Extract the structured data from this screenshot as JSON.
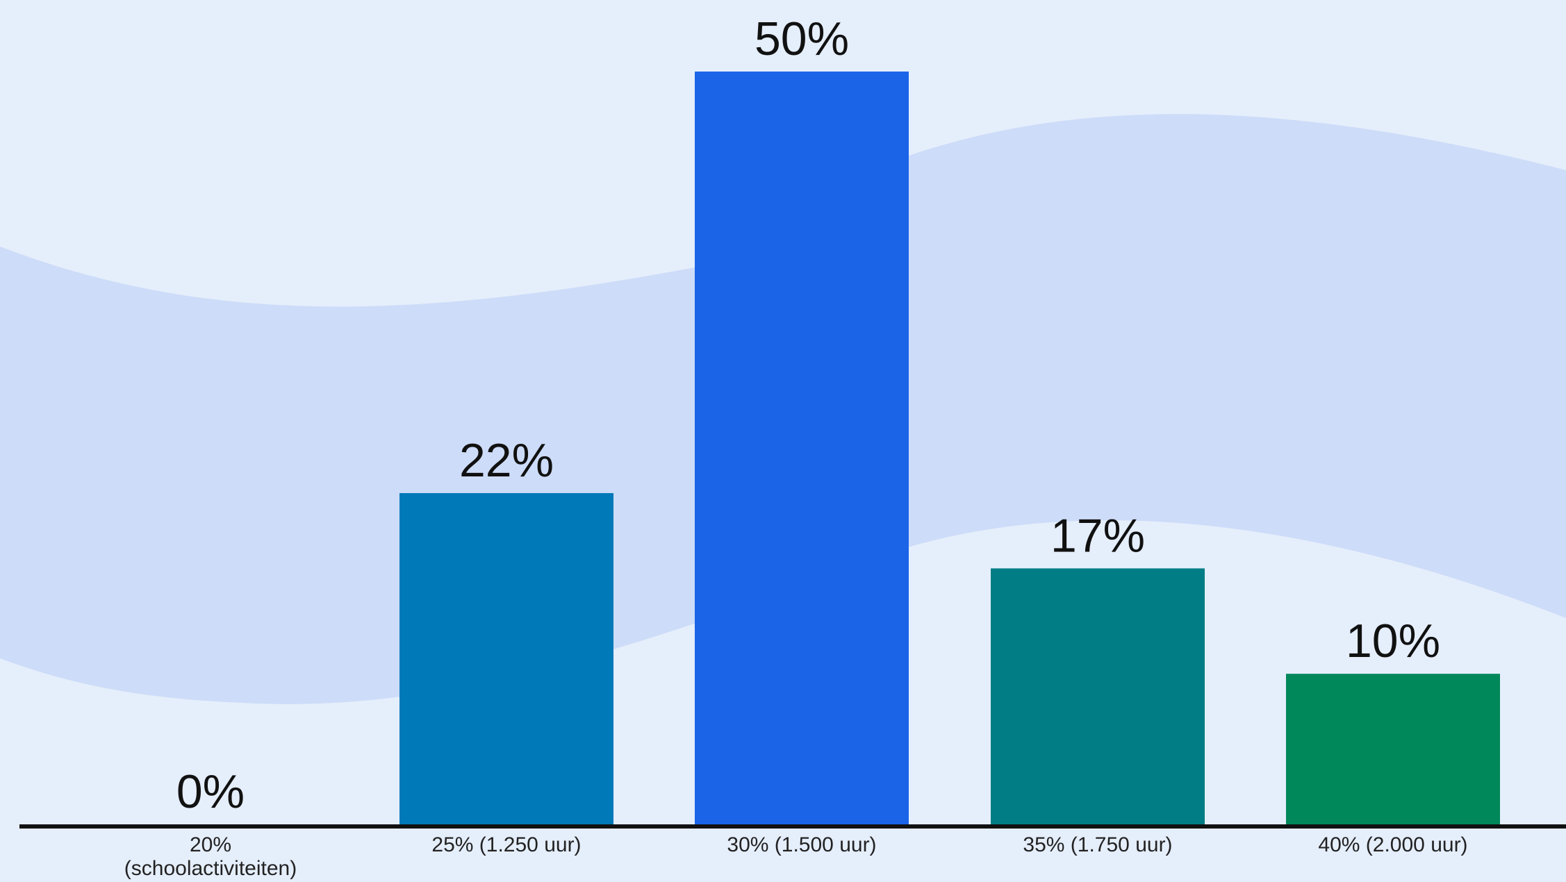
{
  "chart_data": {
    "type": "bar",
    "categories": [
      [
        "20%",
        "(schoolactiviteiten)"
      ],
      [
        "25% (1.250 uur)"
      ],
      [
        "30% (1.500 uur)"
      ],
      [
        "35% (1.750 uur)"
      ],
      [
        "40% (2.000 uur)"
      ]
    ],
    "values": [
      0,
      22,
      50,
      17,
      10
    ],
    "value_labels": [
      "0%",
      "22%",
      "50%",
      "17%",
      "10%"
    ],
    "bar_colors": [
      "#0079b8",
      "#0079b8",
      "#1b64e8",
      "#007d85",
      "#00875a"
    ],
    "ylim": [
      0,
      50
    ],
    "title": "",
    "xlabel": "",
    "ylabel": "",
    "grid": false,
    "legend": "none"
  },
  "colors": {
    "background": "#e5eefb",
    "wave": "#cddcf8",
    "axis": "#111111"
  }
}
